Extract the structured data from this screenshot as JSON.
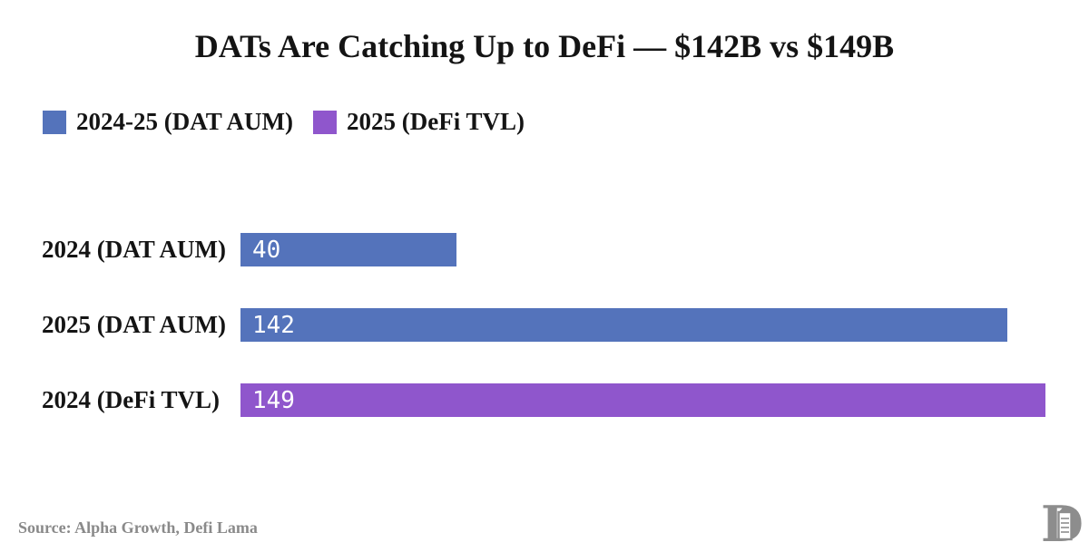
{
  "title": "DATs Are Catching Up to DeFi — $142B vs $149B",
  "legend": [
    {
      "label": "2024-25 (DAT AUM)",
      "color": "#5473bb"
    },
    {
      "label": "2025 (DeFi TVL)",
      "color": "#8f56cc"
    }
  ],
  "chart_data": {
    "type": "bar",
    "orientation": "horizontal",
    "title": "DATs Are Catching Up to DeFi — $142B vs $149B",
    "categories": [
      "2024 (DAT AUM)",
      "2025 (DAT AUM)",
      "2024 (DeFi TVL)"
    ],
    "values": [
      40,
      142,
      149
    ],
    "colors": [
      "#5473bb",
      "#5473bb",
      "#8f56cc"
    ],
    "xlabel": "",
    "ylabel": "",
    "xlim": [
      0,
      150
    ],
    "grid": false,
    "legend_position": "top-left",
    "value_labels_inside_bars": true,
    "value_label_color": "#ffffff"
  },
  "footer": {
    "source": "Source: Alpha Growth, Defi Lama",
    "logo_name": "publisher-monogram-d"
  },
  "colors": {
    "background": "#ffffff",
    "text": "#141414",
    "muted": "#8a8a8a"
  }
}
